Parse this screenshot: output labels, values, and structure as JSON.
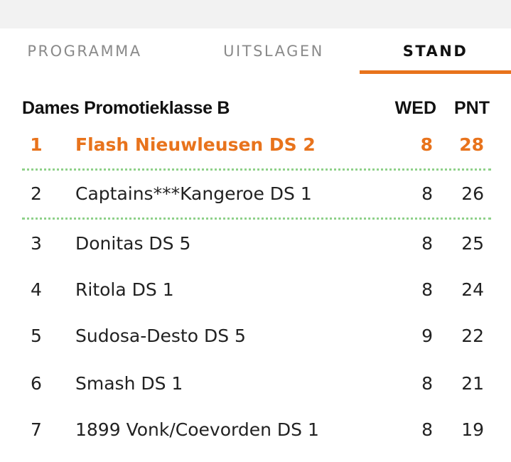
{
  "tabs": [
    {
      "label": "PROGRAMMA",
      "active": false
    },
    {
      "label": "UITSLAGEN",
      "active": false
    },
    {
      "label": "STAND",
      "active": true
    }
  ],
  "colors": {
    "accent": "#e8731c",
    "divider": "#8fd18a",
    "text": "#222222",
    "inactive_tab": "#8a8a8a"
  },
  "standings": {
    "title": "Dames Promotieklasse B",
    "col_wed": "WED",
    "col_pnt": "PNT",
    "rows": [
      {
        "pos": "1",
        "team": "Flash Nieuwleusen DS 2",
        "wed": "8",
        "pnt": "28"
      },
      {
        "pos": "2",
        "team": "Captains***Kangeroe DS 1",
        "wed": "8",
        "pnt": "26"
      },
      {
        "pos": "3",
        "team": "Donitas DS 5",
        "wed": "8",
        "pnt": "25"
      },
      {
        "pos": "4",
        "team": "Ritola DS 1",
        "wed": "8",
        "pnt": "24"
      },
      {
        "pos": "5",
        "team": "Sudosa-Desto DS 5",
        "wed": "9",
        "pnt": "22"
      },
      {
        "pos": "6",
        "team": "Smash DS 1",
        "wed": "8",
        "pnt": "21"
      },
      {
        "pos": "7",
        "team": "1899 Vonk/Coevorden DS 1",
        "wed": "8",
        "pnt": "19"
      }
    ]
  }
}
